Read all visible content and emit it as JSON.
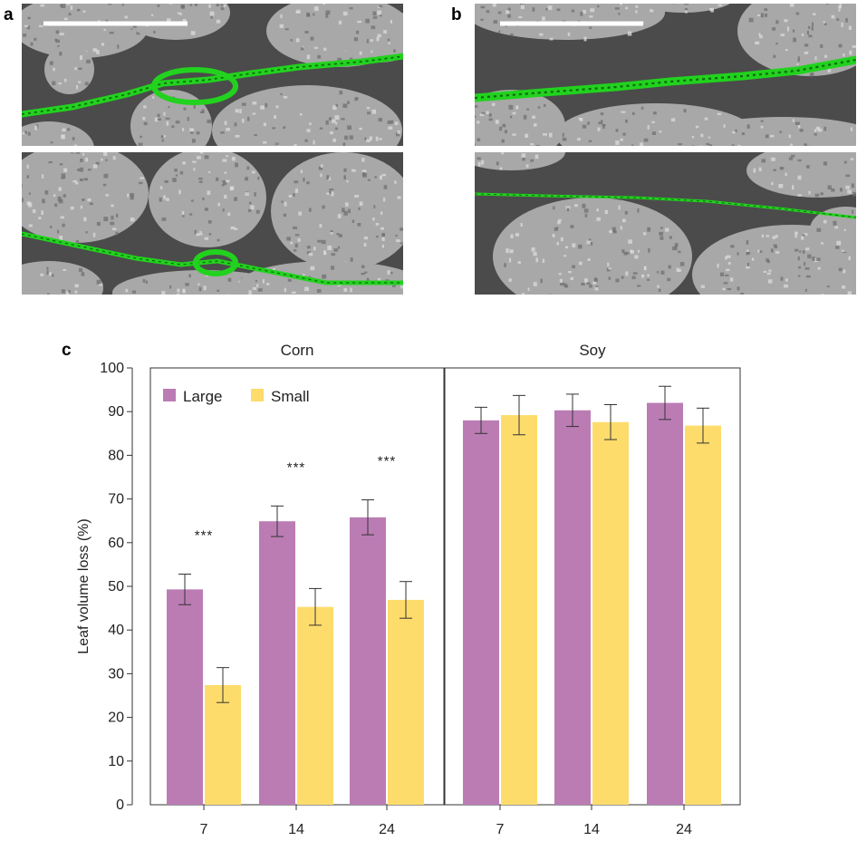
{
  "panels": {
    "a": "a",
    "b": "b",
    "c": "c"
  },
  "micrographs": {
    "background_color": "#4b4b4b",
    "particle_color": "#a8a8a8",
    "vein_color": "#22d21e",
    "scale_bar_color": "#ffffff"
  },
  "colors": {
    "Large": "#bb7cb4",
    "Small": "#fedc6c"
  },
  "chart_data": {
    "type": "bar",
    "facets": [
      {
        "name": "Corn",
        "categories": [
          "7",
          "14",
          "24"
        ],
        "series": [
          {
            "name": "Large",
            "values": [
              49.3,
              64.9,
              65.8
            ],
            "errors": [
              3.5,
              3.5,
              4.0
            ]
          },
          {
            "name": "Small",
            "values": [
              27.4,
              45.3,
              46.9
            ],
            "errors": [
              4.0,
              4.2,
              4.2
            ]
          }
        ],
        "significance": [
          "***",
          "***",
          "***"
        ]
      },
      {
        "name": "Soy",
        "categories": [
          "7",
          "14",
          "24"
        ],
        "series": [
          {
            "name": "Large",
            "values": [
              88.0,
              90.3,
              92.0
            ],
            "errors": [
              3.0,
              3.7,
              3.8
            ]
          },
          {
            "name": "Small",
            "values": [
              89.2,
              87.6,
              86.8
            ],
            "errors": [
              4.5,
              4.0,
              4.0
            ]
          }
        ],
        "significance": [
          "",
          "",
          ""
        ]
      }
    ],
    "ylabel": "Leaf volume loss (%)",
    "xlabel": "",
    "ylim": [
      0,
      100
    ],
    "yticks": [
      "0",
      "10",
      "20",
      "30",
      "40",
      "50",
      "60",
      "70",
      "80",
      "90",
      "100"
    ],
    "legend": {
      "position": "top-left",
      "entries": [
        "Large",
        "Small"
      ]
    },
    "grid": false
  }
}
